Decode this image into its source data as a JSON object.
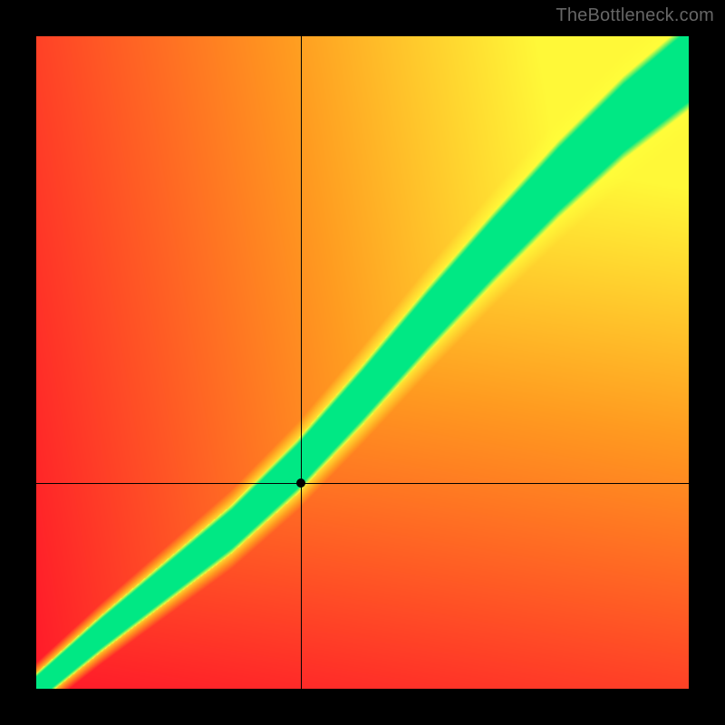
{
  "watermark": {
    "text": "TheBottleneck.com"
  },
  "layout": {
    "canvas_size": 800,
    "plot_inset": 40,
    "plot_size": 720,
    "background_color": "#000000"
  },
  "heatmap": {
    "type": "heatmap",
    "resolution": 180,
    "colors": {
      "red": "#ff1a2a",
      "orange": "#ff9a20",
      "yellow": "#ffff3a",
      "green": "#00e884"
    },
    "gradient_base": {
      "comment": "Bilinear corner colors for the smooth background field (before ridge overlay).",
      "top_left": "#ff1a2a",
      "top_right": "#ffff3a",
      "bottom_left": "#ff1a2a",
      "bottom_right": "#ff1a2a",
      "mid_upper": "#ff9a20"
    },
    "ridge": {
      "comment": "Diagonal high-score band; u,v in [0,1] with v=0 at bottom. Green core with yellow halo.",
      "control_points": [
        {
          "u": 0.0,
          "v": 0.0
        },
        {
          "u": 0.1,
          "v": 0.085
        },
        {
          "u": 0.2,
          "v": 0.165
        },
        {
          "u": 0.3,
          "v": 0.245
        },
        {
          "u": 0.4,
          "v": 0.34
        },
        {
          "u": 0.5,
          "v": 0.45
        },
        {
          "u": 0.6,
          "v": 0.565
        },
        {
          "u": 0.7,
          "v": 0.675
        },
        {
          "u": 0.8,
          "v": 0.78
        },
        {
          "u": 0.9,
          "v": 0.875
        },
        {
          "u": 1.0,
          "v": 0.955
        }
      ],
      "core_halfwidth_start": 0.018,
      "core_halfwidth_end": 0.055,
      "halo_halfwidth_start": 0.04,
      "halo_halfwidth_end": 0.11
    }
  },
  "crosshair": {
    "comment": "u,v in [0,1], v=0 at bottom of plot.",
    "u": 0.405,
    "v": 0.315,
    "line_color": "#000000",
    "line_width": 1,
    "marker_color": "#000000",
    "marker_radius": 5
  }
}
